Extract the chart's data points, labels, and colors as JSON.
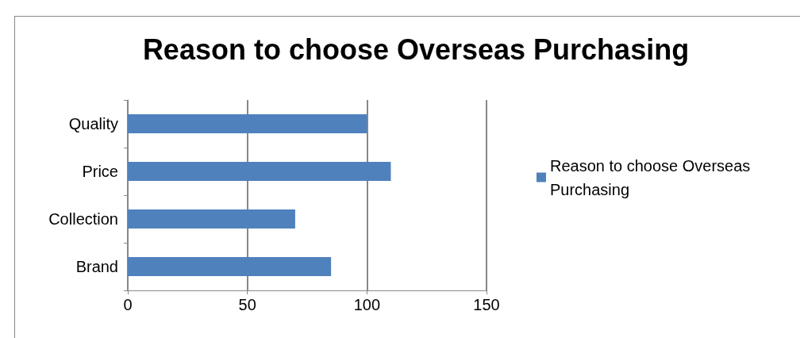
{
  "chart_data": {
    "type": "bar",
    "orientation": "horizontal",
    "title": "Reason to choose Overseas Purchasing",
    "categories": [
      "Quality",
      "Price",
      "Collection",
      "Brand"
    ],
    "series": [
      {
        "name": "Reason to choose Overseas Purchasing",
        "color": "#4f81bd",
        "values": [
          100,
          110,
          70,
          85
        ]
      }
    ],
    "xlim": [
      0,
      150
    ],
    "xticks": [
      0,
      50,
      100,
      150
    ],
    "grid": "x",
    "legend": "right"
  }
}
